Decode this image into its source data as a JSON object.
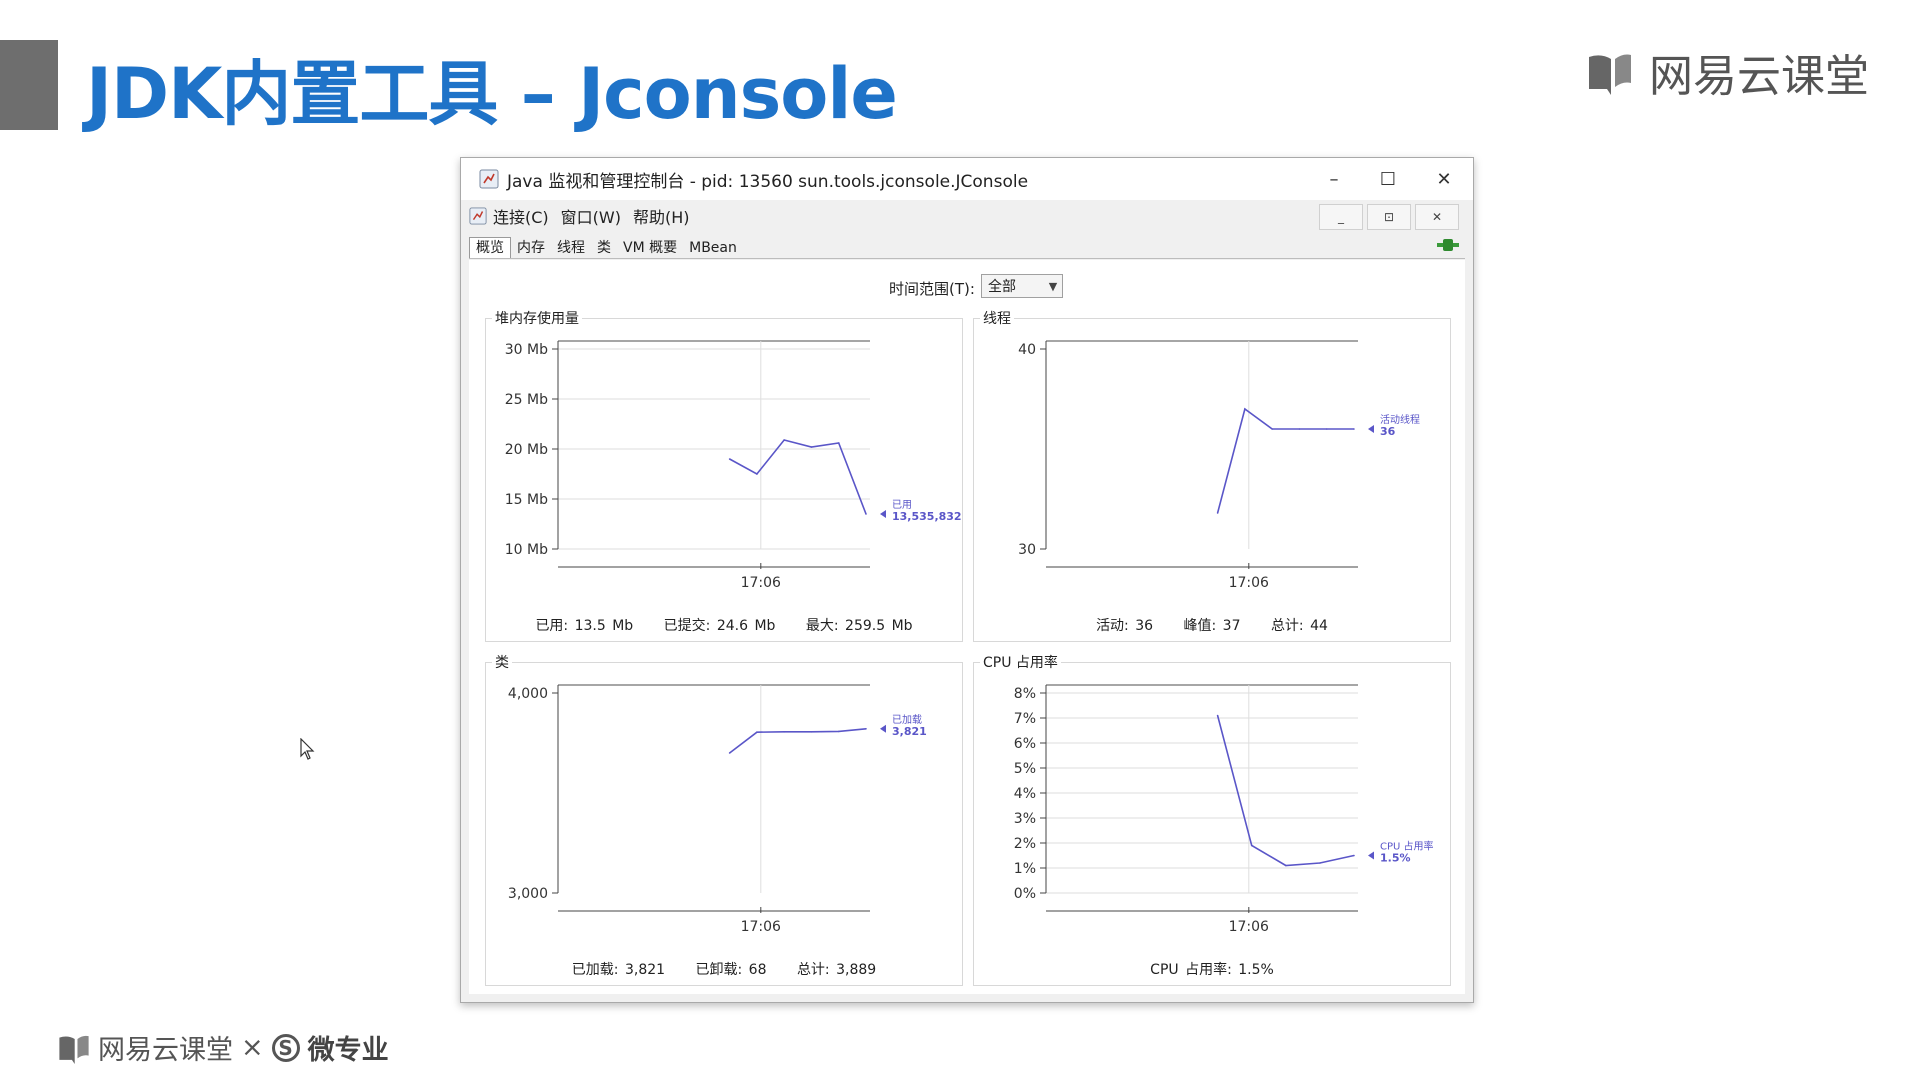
{
  "slide": {
    "title": "JDK内置工具 – Jconsole",
    "brand_top": "网易云课堂",
    "brand_bottom": {
      "part1": "网易云课堂",
      "times": "×",
      "s_mark": "S",
      "part2": "微专业"
    }
  },
  "window": {
    "title": "Java 监视和管理控制台 - pid: 13560 sun.tools.jconsole.JConsole",
    "controls": {
      "minimize": "–",
      "maximize": "☐",
      "close": "✕"
    },
    "inner_controls": {
      "minimize": "_",
      "restore": "⊡",
      "close": "✕"
    },
    "menu": [
      "连接(C)",
      "窗口(W)",
      "帮助(H)"
    ],
    "tabs": [
      "概览",
      "内存",
      "线程",
      "类",
      "VM 概要",
      "MBean"
    ],
    "active_tab": "概览",
    "time_range": {
      "label": "时间范围(T):",
      "value": "全部"
    }
  },
  "panels": {
    "heap": {
      "title": "堆内存使用量",
      "footer": [
        "已用: 13.5 Mb",
        "已提交: 24.6 Mb",
        "最大: 259.5 Mb"
      ]
    },
    "threads": {
      "title": "线程",
      "footer": [
        "活动: 36",
        "峰值: 37",
        "总计: 44"
      ]
    },
    "classes": {
      "title": "类",
      "footer": [
        "已加载: 3,821",
        "已卸载: 68",
        "总计: 3,889"
      ]
    },
    "cpu": {
      "title": "CPU 占用率",
      "footer": [
        "CPU 占用率: 1.5%"
      ]
    }
  },
  "chart_data": [
    {
      "type": "line",
      "key": "heap",
      "yticks": [
        "30 Mb",
        "25 Mb",
        "20 Mb",
        "15 Mb",
        "10 Mb"
      ],
      "ylim": [
        10,
        30
      ],
      "xtick": "17:06",
      "series": [
        {
          "name": "已用",
          "y": [
            19.0,
            17.5,
            20.9,
            20.2,
            20.6,
            13.5
          ]
        }
      ],
      "last_label": "13,535,832",
      "color": "#5a56c8"
    },
    {
      "type": "line",
      "key": "threads",
      "yticks": [
        "40",
        "30"
      ],
      "ylim": [
        30,
        40
      ],
      "xtick": "17:06",
      "series": [
        {
          "name": "活动线程",
          "y": [
            31.8,
            37.0,
            36.0,
            36.0,
            36.0,
            36.0
          ]
        }
      ],
      "last_label": "36",
      "color": "#5a56c8"
    },
    {
      "type": "line",
      "key": "classes",
      "yticks": [
        "4,000",
        "3,000"
      ],
      "ylim": [
        3000,
        4000
      ],
      "xtick": "17:06",
      "series": [
        {
          "name": "已加载",
          "y": [
            3700,
            3804,
            3806,
            3806,
            3808,
            3821
          ]
        }
      ],
      "last_label": "3,821",
      "color": "#5a56c8"
    },
    {
      "type": "line",
      "key": "cpu",
      "yticks": [
        "8%",
        "7%",
        "6%",
        "5%",
        "4%",
        "3%",
        "2%",
        "1%",
        "0%"
      ],
      "ylim": [
        0,
        8
      ],
      "xtick": "17:06",
      "series": [
        {
          "name": "CPU 占用率",
          "y": [
            7.1,
            1.9,
            1.1,
            1.2,
            1.5
          ]
        }
      ],
      "last_label": "1.5%",
      "color": "#5a56c8"
    }
  ]
}
